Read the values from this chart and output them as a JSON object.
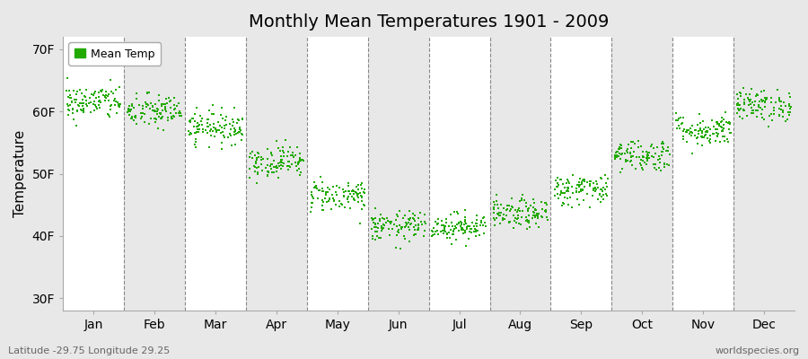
{
  "title": "Monthly Mean Temperatures 1901 - 2009",
  "ylabel": "Temperature",
  "xlabel_labels": [
    "Jan",
    "Feb",
    "Mar",
    "Apr",
    "May",
    "Jun",
    "Jul",
    "Aug",
    "Sep",
    "Oct",
    "Nov",
    "Dec"
  ],
  "ytick_labels": [
    "30F",
    "40F",
    "50F",
    "60F",
    "70F"
  ],
  "ytick_values": [
    30,
    40,
    50,
    60,
    70
  ],
  "ylim": [
    28,
    72
  ],
  "dot_color": "#22aa00",
  "legend_label": "Mean Temp",
  "subtitle_left": "Latitude -29.75 Longitude 29.25",
  "subtitle_right": "worldspecies.org",
  "n_years": 109,
  "monthly_means": [
    61.5,
    60.0,
    57.5,
    52.0,
    46.5,
    41.5,
    41.5,
    43.5,
    47.5,
    53.0,
    57.0,
    61.0
  ],
  "monthly_stds": [
    1.4,
    1.4,
    1.3,
    1.3,
    1.3,
    1.2,
    1.1,
    1.2,
    1.3,
    1.3,
    1.3,
    1.3
  ],
  "band_colors": [
    "#ffffff",
    "#e8e8e8"
  ],
  "outer_bg": "#e8e8e8",
  "seed": 42
}
